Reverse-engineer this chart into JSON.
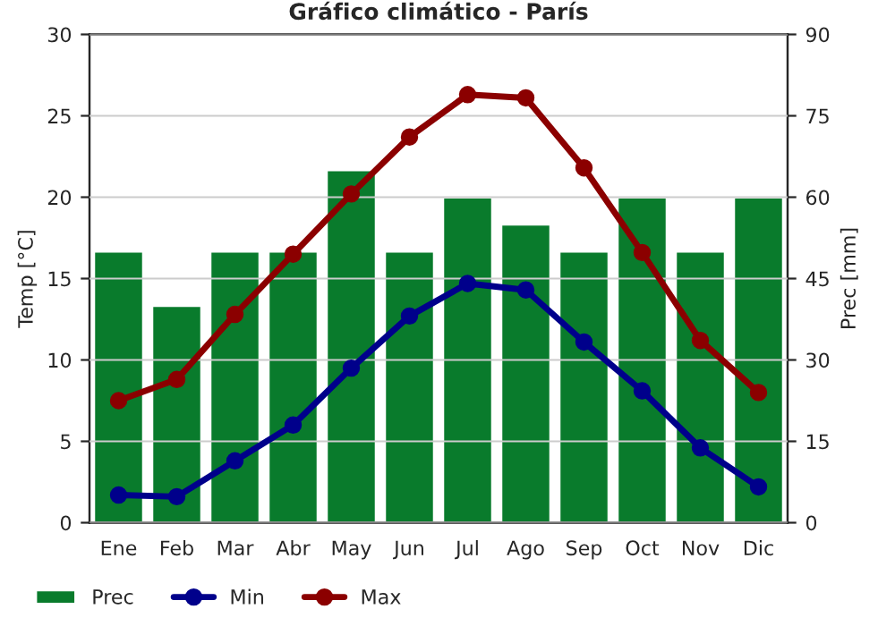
{
  "chart_data": {
    "type": "bar",
    "title": "Gráfico climático - París",
    "ylabel": "Temp [°C]",
    "y2label": "Prec [mm]",
    "categories": [
      "Ene",
      "Feb",
      "Mar",
      "Abr",
      "May",
      "Jun",
      "Jul",
      "Ago",
      "Sep",
      "Oct",
      "Nov",
      "Dic"
    ],
    "series": [
      {
        "name": "Prec",
        "axis": "y2",
        "color": "#097b2c",
        "values": [
          50,
          40,
          50,
          50,
          65,
          50,
          60,
          55,
          50,
          60,
          50,
          60
        ]
      },
      {
        "name": "Min",
        "type": "line",
        "color": "#00008b",
        "values": [
          1.7,
          1.6,
          3.8,
          6.0,
          9.5,
          12.7,
          14.7,
          14.3,
          11.1,
          8.1,
          4.6,
          2.2
        ]
      },
      {
        "name": "Max",
        "type": "line",
        "color": "#8b0000",
        "values": [
          7.5,
          8.8,
          12.8,
          16.5,
          20.2,
          23.7,
          26.3,
          26.1,
          21.8,
          16.6,
          11.2,
          8.0
        ]
      }
    ],
    "ylim": [
      0,
      30
    ],
    "yticks": [
      0,
      5,
      10,
      15,
      20,
      25,
      30
    ],
    "y2lim": [
      0,
      90
    ],
    "y2ticks": [
      0,
      15,
      30,
      45,
      60,
      75,
      90
    ],
    "grid": "y",
    "legend": "bottom",
    "marker": "circle",
    "line_style": "solid"
  }
}
